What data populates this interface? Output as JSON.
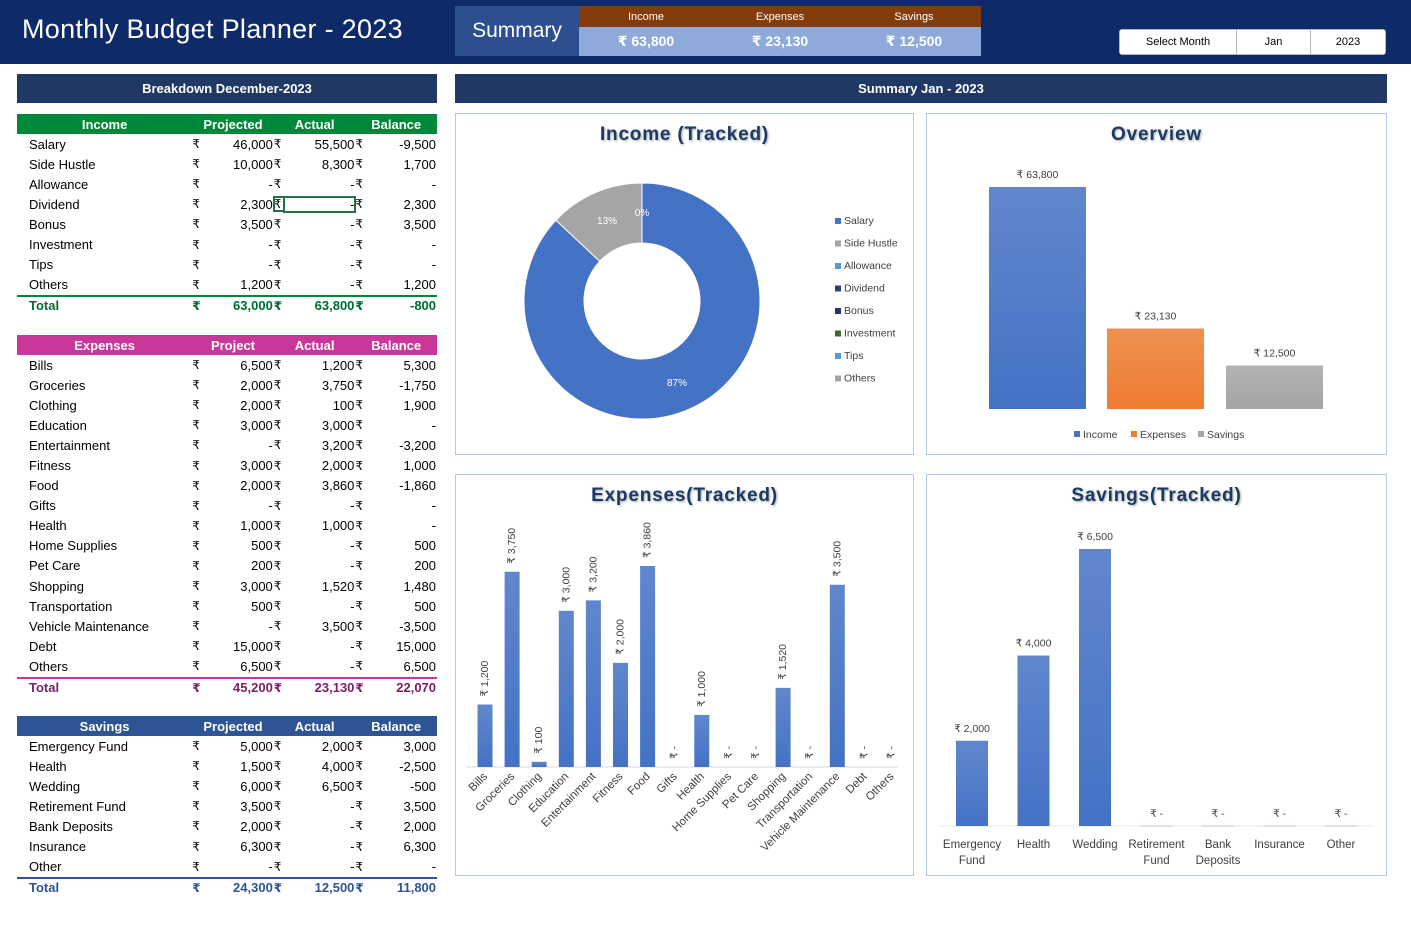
{
  "header": {
    "title": "Monthly Budget Planner - 2023",
    "summary_label": "Summary",
    "summary": [
      {
        "label": "Income",
        "value": "₹ 63,800"
      },
      {
        "label": "Expenses",
        "value": "₹ 23,130"
      },
      {
        "label": "Savings",
        "value": "₹ 12,500"
      }
    ],
    "select_month_label": "Select Month",
    "month": "Jan",
    "year": "2023"
  },
  "left_title": "Breakdown December-2023",
  "right_title": "Summary Jan - 2023",
  "currency": "₹",
  "income": {
    "headers": [
      "Income",
      "Projected",
      "Actual",
      "Balance"
    ],
    "rows": [
      {
        "name": "Salary",
        "projected": "46,000",
        "actual": "55,500",
        "balance": "-9,500"
      },
      {
        "name": "Side Hustle",
        "projected": "10,000",
        "actual": "8,300",
        "balance": "1,700"
      },
      {
        "name": "Allowance",
        "projected": "-",
        "actual": "-",
        "balance": "-"
      },
      {
        "name": "Dividend",
        "projected": "2,300",
        "actual": "-",
        "balance": "2,300"
      },
      {
        "name": "Bonus",
        "projected": "3,500",
        "actual": "-",
        "balance": "3,500"
      },
      {
        "name": "Investment",
        "projected": "-",
        "actual": "-",
        "balance": "-"
      },
      {
        "name": "Tips",
        "projected": "-",
        "actual": "-",
        "balance": "-"
      },
      {
        "name": "Others",
        "projected": "1,200",
        "actual": "-",
        "balance": "1,200"
      }
    ],
    "total": {
      "name": "Total",
      "projected": "63,000",
      "actual": "63,800",
      "balance": "-800"
    }
  },
  "expenses": {
    "headers": [
      "Expenses",
      "Project",
      "Actual",
      "Balance"
    ],
    "rows": [
      {
        "name": "Bills",
        "projected": "6,500",
        "actual": "1,200",
        "balance": "5,300"
      },
      {
        "name": "Groceries",
        "projected": "2,000",
        "actual": "3,750",
        "balance": "-1,750"
      },
      {
        "name": "Clothing",
        "projected": "2,000",
        "actual": "100",
        "balance": "1,900"
      },
      {
        "name": "Education",
        "projected": "3,000",
        "actual": "3,000",
        "balance": "-"
      },
      {
        "name": "Entertainment",
        "projected": "-",
        "actual": "3,200",
        "balance": "-3,200"
      },
      {
        "name": "Fitness",
        "projected": "3,000",
        "actual": "2,000",
        "balance": "1,000"
      },
      {
        "name": "Food",
        "projected": "2,000",
        "actual": "3,860",
        "balance": "-1,860"
      },
      {
        "name": "Gifts",
        "projected": "-",
        "actual": "-",
        "balance": "-"
      },
      {
        "name": "Health",
        "projected": "1,000",
        "actual": "1,000",
        "balance": "-"
      },
      {
        "name": "Home Supplies",
        "projected": "500",
        "actual": "-",
        "balance": "500"
      },
      {
        "name": "Pet Care",
        "projected": "200",
        "actual": "-",
        "balance": "200"
      },
      {
        "name": "Shopping",
        "projected": "3,000",
        "actual": "1,520",
        "balance": "1,480"
      },
      {
        "name": "Transportation",
        "projected": "500",
        "actual": "-",
        "balance": "500"
      },
      {
        "name": "Vehicle Maintenance",
        "projected": "-",
        "actual": "3,500",
        "balance": "-3,500"
      },
      {
        "name": "Debt",
        "projected": "15,000",
        "actual": "-",
        "balance": "15,000"
      },
      {
        "name": "Others",
        "projected": "6,500",
        "actual": "-",
        "balance": "6,500"
      }
    ],
    "total": {
      "name": "Total",
      "projected": "45,200",
      "actual": "23,130",
      "balance": "22,070"
    }
  },
  "savings": {
    "headers": [
      "Savings",
      "Projected",
      "Actual",
      "Balance"
    ],
    "rows": [
      {
        "name": "Emergency Fund",
        "projected": "5,000",
        "actual": "2,000",
        "balance": "3,000"
      },
      {
        "name": "Health",
        "projected": "1,500",
        "actual": "4,000",
        "balance": "-2,500"
      },
      {
        "name": "Wedding",
        "projected": "6,000",
        "actual": "6,500",
        "balance": "-500"
      },
      {
        "name": "Retirement Fund",
        "projected": "3,500",
        "actual": "-",
        "balance": "3,500"
      },
      {
        "name": "Bank Deposits",
        "projected": "2,000",
        "actual": "-",
        "balance": "2,000"
      },
      {
        "name": "Insurance",
        "projected": "6,300",
        "actual": "-",
        "balance": "6,300"
      },
      {
        "name": "Other",
        "projected": "-",
        "actual": "-",
        "balance": "-"
      }
    ],
    "total": {
      "name": "Total",
      "projected": "24,300",
      "actual": "12,500",
      "balance": "11,800"
    }
  },
  "chart_data": [
    {
      "type": "pie",
      "title": "Income (Tracked)",
      "donut": true,
      "categories": [
        "Salary",
        "Side Hustle",
        "Allowance",
        "Dividend",
        "Bonus",
        "Investment",
        "Tips",
        "Others"
      ],
      "values": [
        55500,
        8300,
        0,
        0,
        0,
        0,
        0,
        0
      ],
      "data_labels": [
        "87%",
        "13%",
        "0%",
        "0%",
        "0%",
        "0%",
        "0%",
        "0%"
      ],
      "colors": [
        "#4472c4",
        "#a5a5a5",
        "#5b9bd5",
        "#264478",
        "#1f3864",
        "#43682b",
        "#5b9bd5",
        "#a5a5a5"
      ],
      "legend": "right"
    },
    {
      "type": "bar",
      "title": "Overview",
      "categories": [
        "Income",
        "Expenses",
        "Savings"
      ],
      "values": [
        63800,
        23130,
        12500
      ],
      "data_labels": [
        "₹ 63,800",
        "₹ 23,130",
        "₹ 12,500"
      ],
      "colors": [
        "#4472c4",
        "#ed7d31",
        "#a5a5a5"
      ],
      "legend": "bottom",
      "ylim": [
        0,
        70000
      ]
    },
    {
      "type": "bar",
      "title": "Expenses(Tracked)",
      "categories": [
        "Bills",
        "Groceries",
        "Clothing",
        "Education",
        "Entertainment",
        "Fitness",
        "Food",
        "Gifts",
        "Health",
        "Home Supplies",
        "Pet Care",
        "Shopping",
        "Transportation",
        "Vehicle Maintenance",
        "Debt",
        "Others"
      ],
      "values": [
        1200,
        3750,
        100,
        3000,
        3200,
        2000,
        3860,
        0,
        1000,
        0,
        0,
        1520,
        0,
        3500,
        0,
        0
      ],
      "data_labels": [
        "₹ 1,200",
        "₹ 3,750",
        "₹ 100",
        "₹ 3,000",
        "₹ 3,200",
        "₹ 2,000",
        "₹ 3,860",
        "₹ -",
        "₹ 1,000",
        "₹ -",
        "₹ -",
        "₹ 1,520",
        "₹ -",
        "₹ 3,500",
        "₹ -",
        "₹ -"
      ],
      "ylim": [
        0,
        4000
      ]
    },
    {
      "type": "bar",
      "title": "Savings(Tracked)",
      "categories": [
        "Emergency Fund",
        "Health",
        "Wedding",
        "Retirement Fund",
        "Bank Deposits",
        "Insurance",
        "Other"
      ],
      "values": [
        2000,
        4000,
        6500,
        0,
        0,
        0,
        0
      ],
      "data_labels": [
        "₹ 2,000",
        "₹ 4,000",
        "₹ 6,500",
        "₹ -",
        "₹ -",
        "₹ -",
        "₹ -"
      ],
      "ylim": [
        0,
        7000
      ]
    }
  ]
}
